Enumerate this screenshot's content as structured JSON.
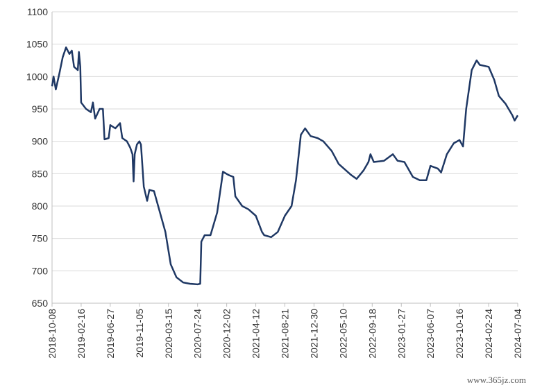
{
  "chart_data": {
    "type": "line",
    "x": [
      "2018-10-08",
      "2018-10-15",
      "2018-10-25",
      "2018-11-10",
      "2018-11-25",
      "2018-12-10",
      "2018-12-25",
      "2019-01-05",
      "2019-01-15",
      "2019-02-01",
      "2019-02-06",
      "2019-02-12",
      "2019-02-16",
      "2019-03-10",
      "2019-04-01",
      "2019-04-10",
      "2019-04-20",
      "2019-05-10",
      "2019-05-25",
      "2019-06-01",
      "2019-06-20",
      "2019-06-27",
      "2019-07-20",
      "2019-08-10",
      "2019-08-20",
      "2019-09-10",
      "2019-09-25",
      "2019-10-05",
      "2019-10-10",
      "2019-10-15",
      "2019-10-25",
      "2019-11-05",
      "2019-11-12",
      "2019-11-25",
      "2019-12-10",
      "2019-12-20",
      "2020-01-10",
      "2020-03-01",
      "2020-03-25",
      "2020-04-20",
      "2020-05-20",
      "2020-06-20",
      "2020-07-24",
      "2020-08-05",
      "2020-08-10",
      "2020-08-25",
      "2020-09-20",
      "2020-10-20",
      "2020-11-10",
      "2020-11-15",
      "2020-12-10",
      "2021-01-01",
      "2021-01-10",
      "2021-02-10",
      "2021-03-10",
      "2021-04-12",
      "2021-05-10",
      "2021-05-20",
      "2021-06-20",
      "2021-07-20",
      "2021-08-21",
      "2021-09-20",
      "2021-10-10",
      "2021-11-01",
      "2021-11-20",
      "2021-12-15",
      "2022-01-15",
      "2022-02-10",
      "2022-03-20",
      "2022-04-20",
      "2022-06-15",
      "2022-07-10",
      "2022-08-10",
      "2022-09-01",
      "2022-09-10",
      "2022-09-25",
      "2022-11-10",
      "2022-12-20",
      "2023-01-10",
      "2023-02-10",
      "2023-03-20",
      "2023-04-20",
      "2023-05-20",
      "2023-06-07",
      "2023-07-10",
      "2023-07-25",
      "2023-08-20",
      "2023-09-20",
      "2023-10-16",
      "2023-11-01",
      "2023-11-15",
      "2023-12-10",
      "2024-01-01",
      "2024-01-15",
      "2024-02-24",
      "2024-03-20",
      "2024-04-10",
      "2024-05-10",
      "2024-06-10",
      "2024-06-20",
      "2024-07-04"
    ],
    "series": [
      {
        "color": "#1f3864",
        "values": [
          985,
          1000,
          980,
          1005,
          1030,
          1045,
          1035,
          1040,
          1015,
          1010,
          1038,
          1015,
          960,
          950,
          945,
          960,
          935,
          950,
          950,
          903,
          905,
          925,
          920,
          928,
          905,
          900,
          890,
          880,
          838,
          880,
          895,
          900,
          895,
          830,
          808,
          825,
          823,
          760,
          710,
          690,
          682,
          680,
          679,
          680,
          745,
          755,
          755,
          790,
          840,
          853,
          848,
          845,
          815,
          800,
          795,
          785,
          760,
          755,
          752,
          760,
          785,
          800,
          840,
          910,
          920,
          908,
          905,
          900,
          885,
          865,
          848,
          842,
          855,
          868,
          880,
          868,
          870,
          880,
          870,
          868,
          845,
          840,
          840,
          862,
          858,
          852,
          880,
          897,
          902,
          892,
          950,
          1010,
          1025,
          1018,
          1015,
          995,
          970,
          958,
          940,
          932,
          940
        ]
      }
    ],
    "xlim": [
      "2018-10-08",
      "2024-07-04"
    ],
    "xticks": [
      "2018-10-08",
      "2019-02-16",
      "2019-06-27",
      "2019-11-05",
      "2020-03-15",
      "2020-07-24",
      "2020-12-02",
      "2021-04-12",
      "2021-08-21",
      "2021-12-30",
      "2022-05-10",
      "2022-09-18",
      "2023-01-27",
      "2023-06-07",
      "2023-10-16",
      "2024-02-24",
      "2024-07-04"
    ],
    "ylim": [
      650,
      1100
    ],
    "yticks": [
      650,
      700,
      750,
      800,
      850,
      900,
      950,
      1000,
      1050,
      1100
    ],
    "grid": true,
    "watermark": "www.365jz.com"
  }
}
